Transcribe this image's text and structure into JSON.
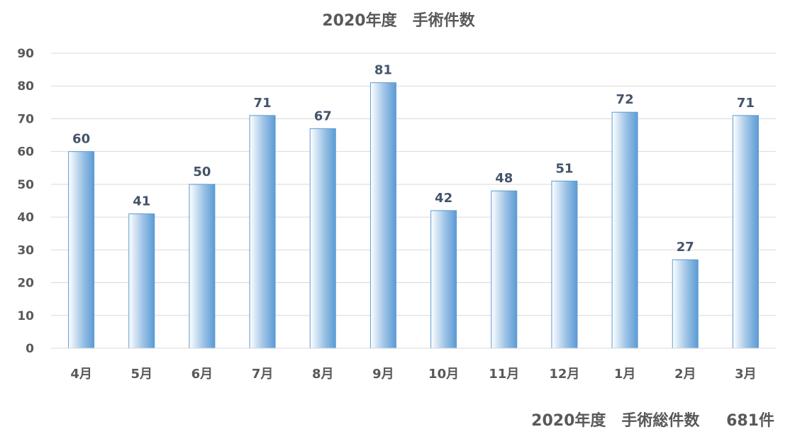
{
  "chart_data": {
    "type": "bar",
    "title": "2020年度　手術件数",
    "categories": [
      "4月",
      "5月",
      "6月",
      "7月",
      "8月",
      "9月",
      "10月",
      "11月",
      "12月",
      "1月",
      "2月",
      "3月"
    ],
    "values": [
      60,
      41,
      50,
      71,
      67,
      81,
      42,
      48,
      51,
      72,
      27,
      71
    ],
    "ylim": [
      0,
      90
    ],
    "yticks": [
      0,
      10,
      20,
      30,
      40,
      50,
      60,
      70,
      80,
      90
    ],
    "xlabel": "",
    "ylabel": "",
    "grid": true,
    "legend": "none",
    "bar_color": "#5b9bd5",
    "bar_highlight": "#ffffff",
    "data_label_color": "#44546a"
  },
  "footer": {
    "label": "2020年度　手術総件数",
    "total": "681件"
  }
}
